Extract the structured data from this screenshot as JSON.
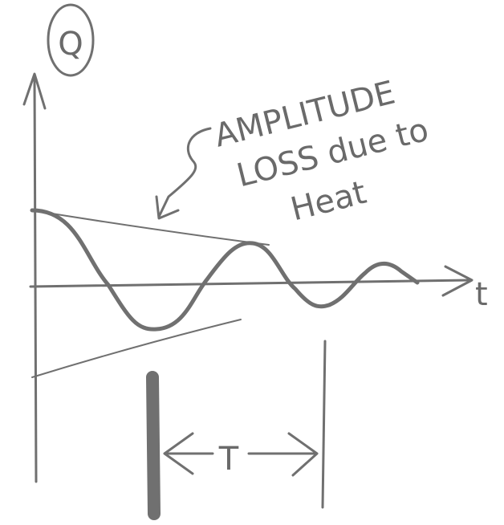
{
  "axes": {
    "y_label": "Q",
    "x_label": "t"
  },
  "annotation": {
    "lines": [
      "AMPLITUDE",
      "LOSS due to",
      "Heat"
    ]
  },
  "period": {
    "label": "T"
  }
}
